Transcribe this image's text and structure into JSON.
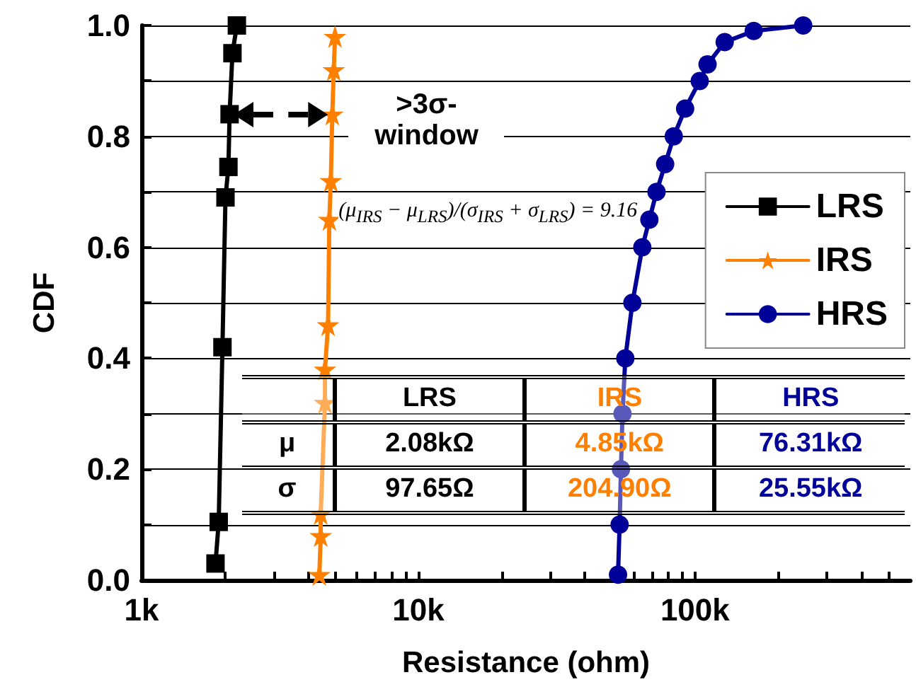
{
  "chart_data": {
    "type": "line",
    "xlabel": "Resistance (ohm)",
    "ylabel": "CDF",
    "log": "x",
    "xlim": [
      1000,
      600000
    ],
    "xticks": [
      {
        "value": 1000,
        "label": "1k"
      },
      {
        "value": 2000,
        "label": null
      },
      {
        "value": 3000,
        "label": null
      },
      {
        "value": 4000,
        "label": null
      },
      {
        "value": 5000,
        "label": null
      },
      {
        "value": 6000,
        "label": null
      },
      {
        "value": 7000,
        "label": null
      },
      {
        "value": 8000,
        "label": null
      },
      {
        "value": 9000,
        "label": null
      },
      {
        "value": 10000,
        "label": "10k"
      },
      {
        "value": 20000,
        "label": null
      },
      {
        "value": 30000,
        "label": null
      },
      {
        "value": 40000,
        "label": null
      },
      {
        "value": 50000,
        "label": null
      },
      {
        "value": 60000,
        "label": null
      },
      {
        "value": 70000,
        "label": null
      },
      {
        "value": 80000,
        "label": null
      },
      {
        "value": 90000,
        "label": null
      },
      {
        "value": 100000,
        "label": "100k"
      },
      {
        "value": 200000,
        "label": null
      },
      {
        "value": 300000,
        "label": null
      },
      {
        "value": 400000,
        "label": null
      },
      {
        "value": 500000,
        "label": null
      }
    ],
    "ylim": [
      0,
      1
    ],
    "yticks": [
      {
        "value": 0,
        "label": "0.0"
      },
      {
        "value": 0.1,
        "label": null
      },
      {
        "value": 0.2,
        "label": "0.2"
      },
      {
        "value": 0.3,
        "label": null
      },
      {
        "value": 0.4,
        "label": "0.4"
      },
      {
        "value": 0.5,
        "label": null
      },
      {
        "value": 0.6,
        "label": "0.6"
      },
      {
        "value": 0.7,
        "label": null
      },
      {
        "value": 0.8,
        "label": "0.8"
      },
      {
        "value": 0.9,
        "label": null
      },
      {
        "value": 1,
        "label": "1.0"
      }
    ],
    "grid": "y",
    "legend": "right",
    "line_style": "solid",
    "series": [
      {
        "name": "LRS",
        "color": "#000000",
        "marker": "square",
        "x": [
          1850,
          1900,
          1960,
          2010,
          2060,
          2080,
          2130,
          2210
        ],
        "values": [
          0.03,
          0.105,
          0.42,
          0.69,
          0.745,
          0.84,
          0.95,
          1.0
        ]
      },
      {
        "name": "IRS",
        "color": "#ff8000",
        "marker": "star",
        "x": [
          4390,
          4440,
          4440,
          4600,
          4600,
          4720,
          4770,
          4830,
          4890,
          4950,
          5000
        ],
        "values": [
          0.01,
          0.08,
          0.12,
          0.32,
          0.38,
          0.46,
          0.65,
          0.72,
          0.84,
          0.92,
          0.98
        ]
      },
      {
        "name": "HRS",
        "color": "#000099",
        "marker": "circle",
        "x": [
          52700,
          53400,
          54000,
          54700,
          56000,
          59400,
          64500,
          68400,
          72600,
          78000,
          83800,
          92100,
          104000,
          111000,
          128000,
          163000,
          246000
        ],
        "values": [
          0.01,
          0.1,
          0.2,
          0.3,
          0.4,
          0.5,
          0.6,
          0.65,
          0.7,
          0.75,
          0.8,
          0.85,
          0.9,
          0.93,
          0.97,
          0.99,
          1.0
        ]
      }
    ],
    "annotations": [
      ">3σ-window",
      "(μ$_{IRS}$ − μ$_{LRS}$)/(σ$_{IRS}$ + σ$_{LRS}$) = 9.16",
      "LRS",
      "IRS",
      "HRS",
      "μ",
      "2.08kΩ",
      "4.85kΩ",
      "76.31kΩ",
      "σ",
      "97.65Ω",
      "204.90Ω",
      "25.55kΩ"
    ]
  }
}
